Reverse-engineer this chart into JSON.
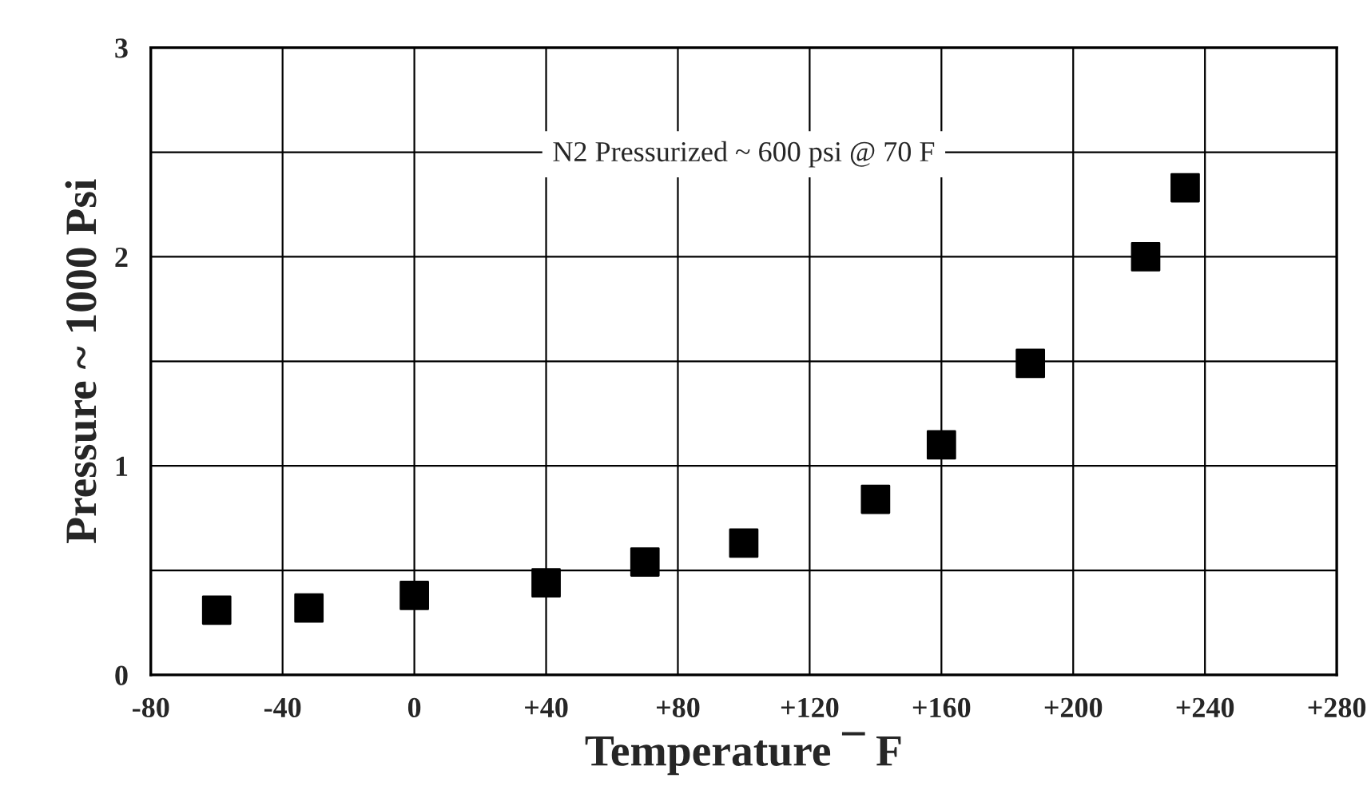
{
  "chart_data": {
    "type": "scatter",
    "xlabel": "Temperature ¯ F",
    "ylabel": "Pressure ~ 1000 Psi",
    "annotations": [
      "N2 Pressurized ~ 600 psi @ 70 F"
    ],
    "x": [
      -60,
      -32,
      0,
      40,
      70,
      100,
      140,
      160,
      187,
      222,
      234
    ],
    "series": [
      {
        "color": "#000000",
        "values": [
          0.31,
          0.32,
          0.38,
          0.44,
          0.54,
          0.63,
          0.84,
          1.1,
          1.49,
          2.0,
          2.33
        ]
      }
    ],
    "xlim": [
      -80,
      280
    ],
    "ylim": [
      0,
      3
    ],
    "xticks": [
      -80,
      -40,
      0,
      {
        "value": 40,
        "label": "+40"
      },
      {
        "value": 80,
        "label": "+80"
      },
      {
        "value": 120,
        "label": "+120"
      },
      {
        "value": 160,
        "label": "+160"
      },
      {
        "value": 200,
        "label": "+200"
      },
      {
        "value": 240,
        "label": "+240"
      },
      {
        "value": 280,
        "label": "+280"
      }
    ],
    "yticks": [
      0,
      {
        "value": 0.5,
        "label": null
      },
      1,
      {
        "value": 1.5,
        "label": null
      },
      2,
      {
        "value": 2.5,
        "label": null
      },
      3
    ],
    "grid": true,
    "marker": "square",
    "legend": false
  }
}
